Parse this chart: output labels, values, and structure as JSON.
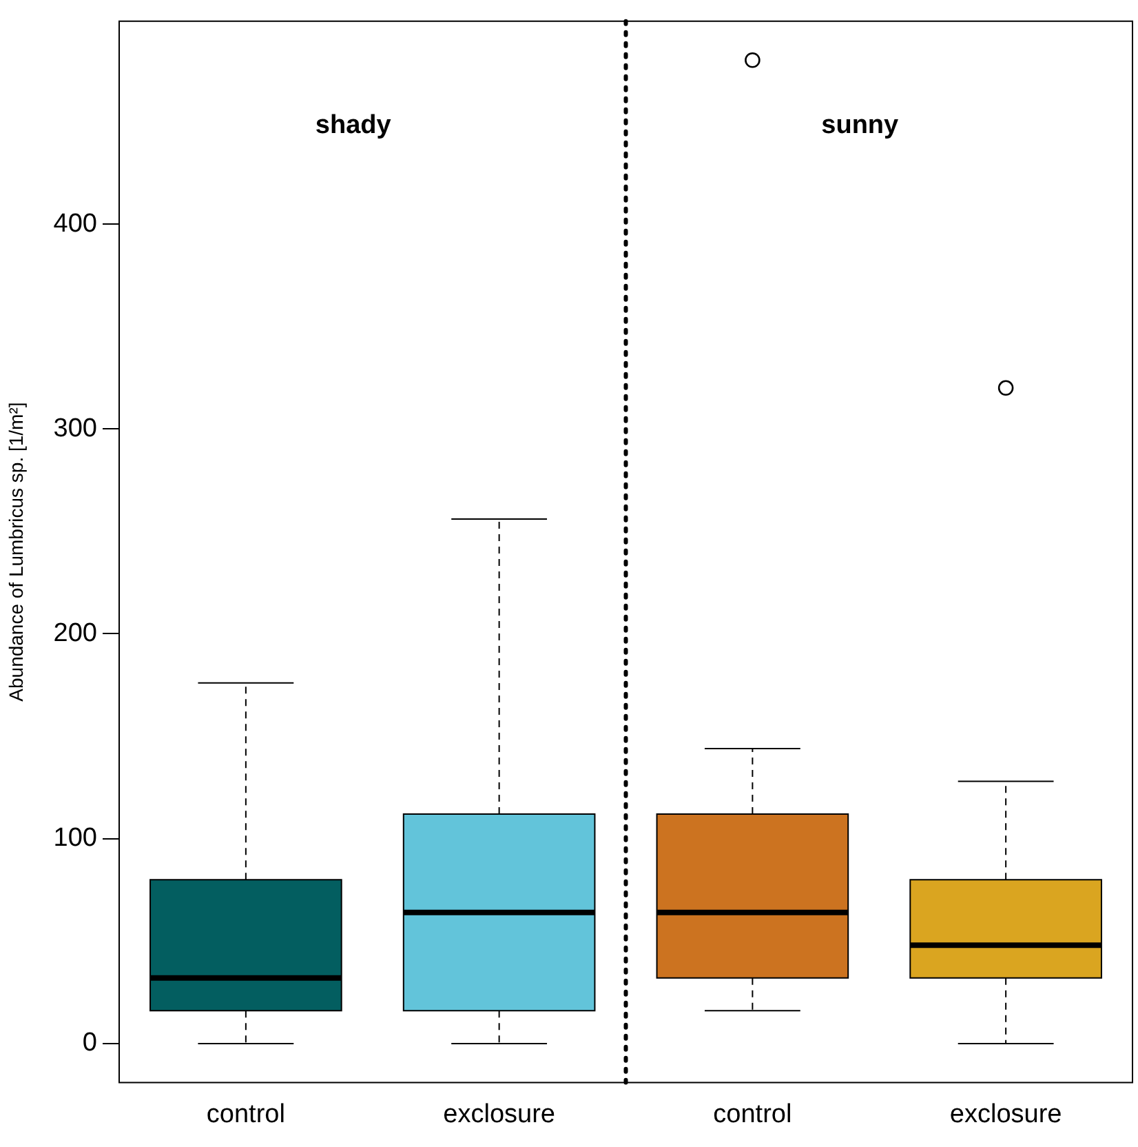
{
  "chart_data": {
    "type": "box",
    "ylabel": "Abundance of Lumbricus sp. [1/m²]",
    "categories": [
      "control",
      "exclosure",
      "control",
      "exclosure"
    ],
    "colors": [
      "#035e60",
      "#62c4da",
      "#cc7320",
      "#daa520"
    ],
    "boxes": [
      {
        "low": 0,
        "q1": 16,
        "median": 32,
        "q3": 80,
        "high": 176
      },
      {
        "low": 0,
        "q1": 16,
        "median": 64,
        "q3": 112,
        "high": 256
      },
      {
        "low": 16,
        "q1": 32,
        "median": 64,
        "q3": 112,
        "high": 144,
        "outliers": [
          480
        ]
      },
      {
        "low": 0,
        "q1": 32,
        "median": 48,
        "q3": 80,
        "high": 128,
        "outliers": [
          320
        ]
      }
    ],
    "ylim": [
      -19,
      499
    ],
    "yticks": [
      0,
      100,
      200,
      300,
      400
    ],
    "annotations": [
      "shady",
      "sunny"
    ],
    "grid": false,
    "legend": false
  }
}
